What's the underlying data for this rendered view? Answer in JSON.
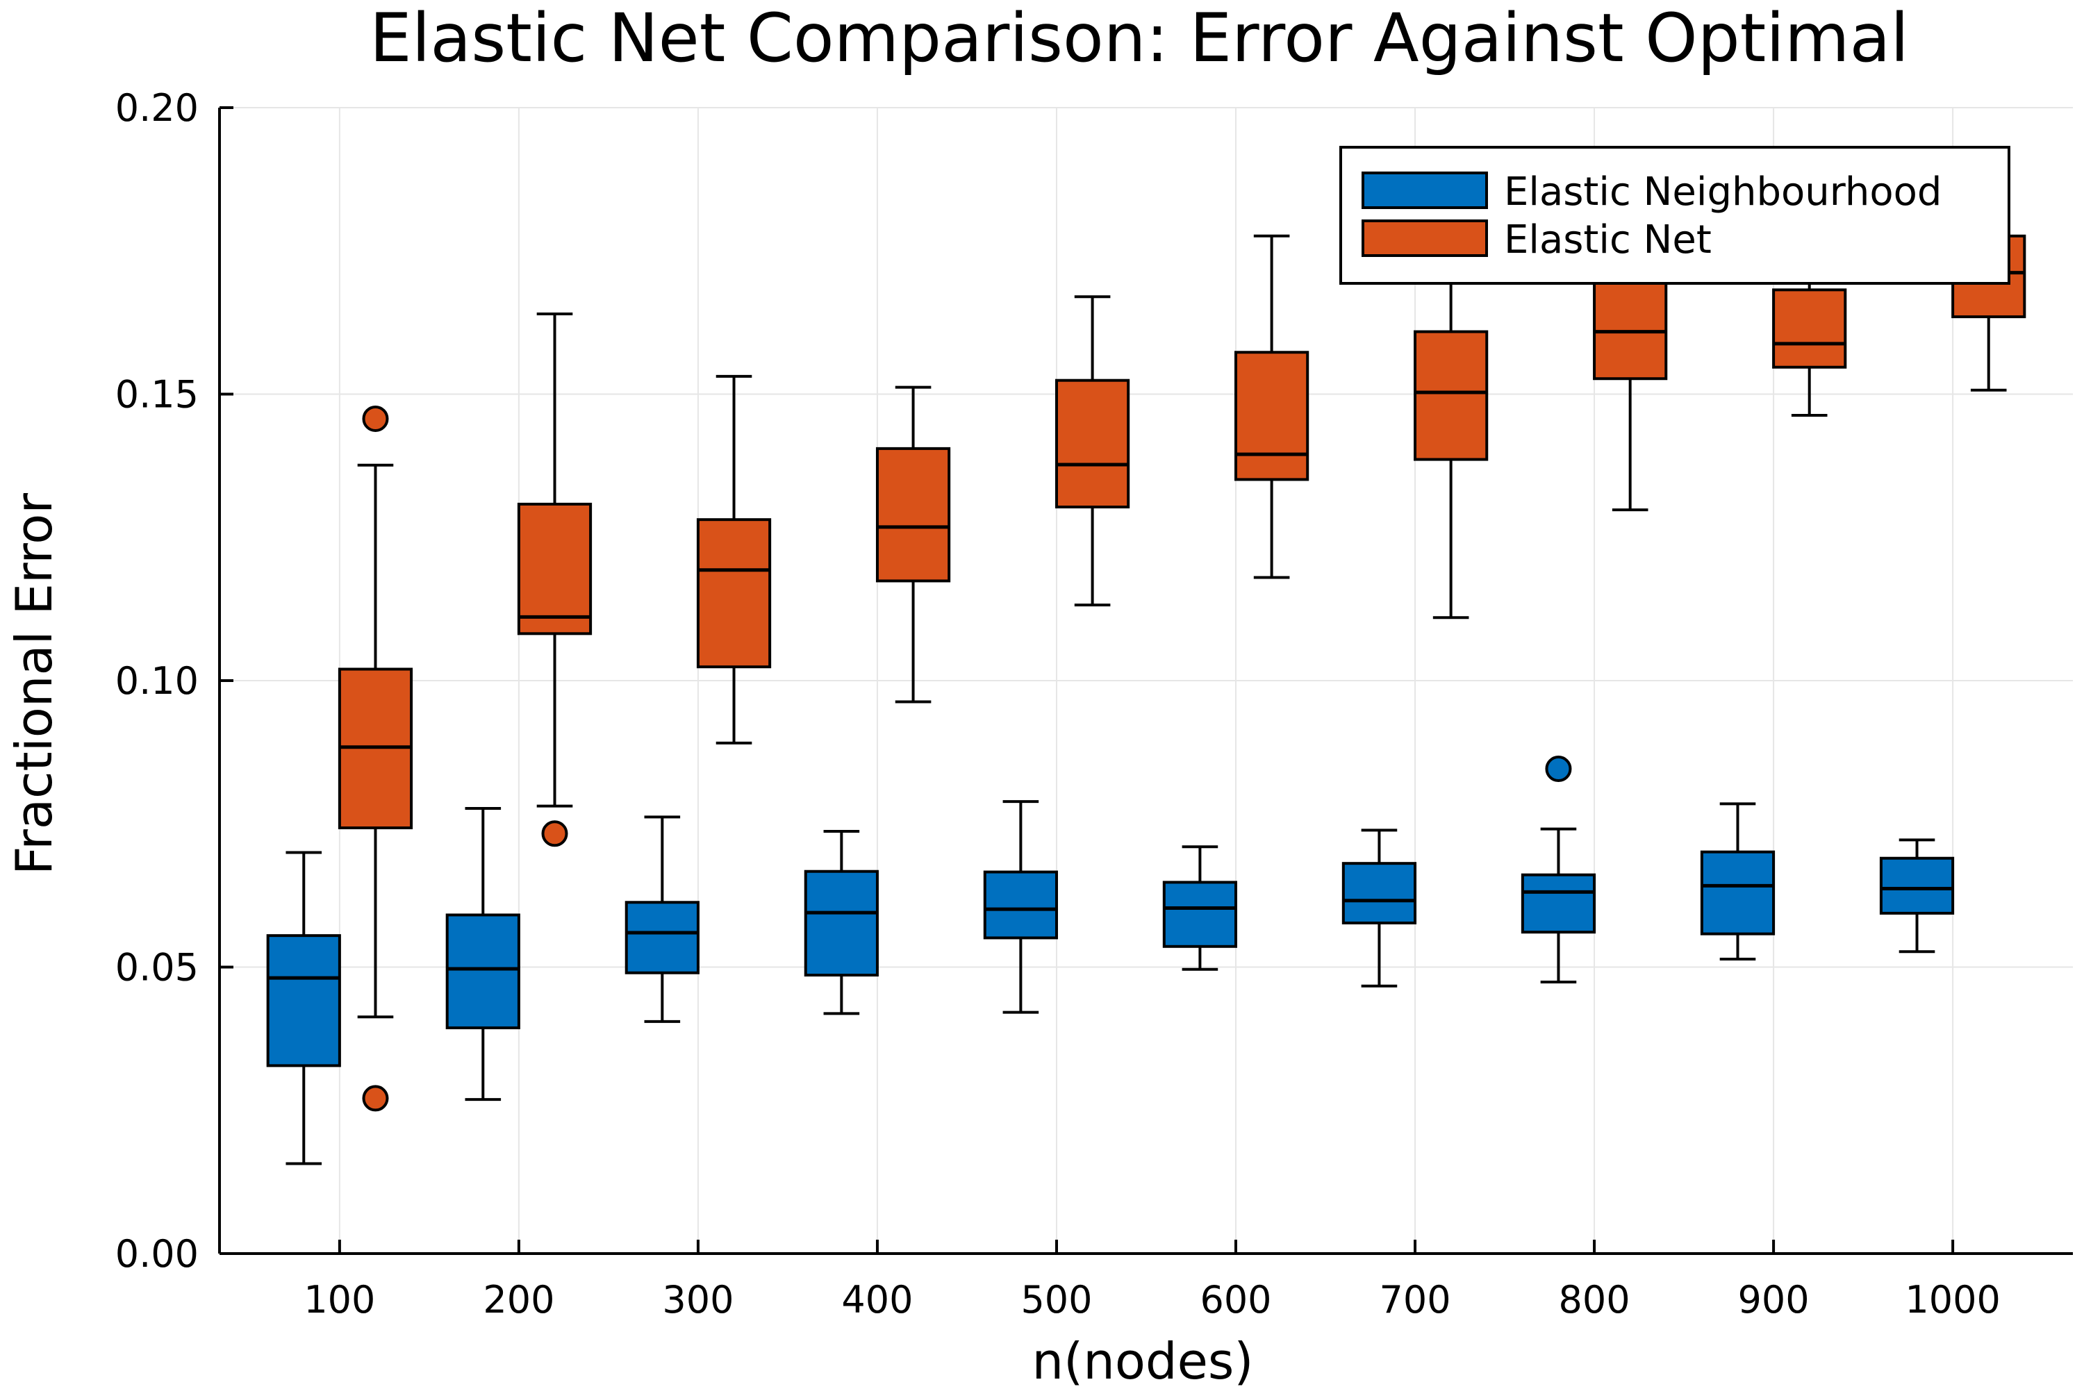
{
  "chart_data": {
    "type": "box",
    "title": "Elastic Net Comparison: Error Against Optimal",
    "xlabel": "n(nodes)",
    "ylabel": "Fractional Error",
    "ylim": [
      0.0,
      0.2
    ],
    "xlim": [
      33,
      1067
    ],
    "x_ticks": [
      {
        "value": 100,
        "label": "100"
      },
      {
        "value": 200,
        "label": "200"
      },
      {
        "value": 300,
        "label": "300"
      },
      {
        "value": 400,
        "label": "400"
      },
      {
        "value": 500,
        "label": "500"
      },
      {
        "value": 600,
        "label": "600"
      },
      {
        "value": 700,
        "label": "700"
      },
      {
        "value": 800,
        "label": "800"
      },
      {
        "value": 900,
        "label": "900"
      },
      {
        "value": 1000,
        "label": "1000"
      }
    ],
    "y_ticks": [
      {
        "value": 0.0,
        "label": "0.00"
      },
      {
        "value": 0.05,
        "label": "0.05"
      },
      {
        "value": 0.1,
        "label": "0.10"
      },
      {
        "value": 0.15,
        "label": "0.15"
      },
      {
        "value": 0.2,
        "label": "0.20"
      }
    ],
    "grid": true,
    "legend_position": "top-right",
    "series": [
      {
        "name": "Elastic Neighbourhood",
        "color": "#0070BF",
        "boxes": [
          {
            "x": 80,
            "whisker_low": 0.0157,
            "q1": 0.0328,
            "median": 0.0481,
            "q3": 0.0555,
            "whisker_high": 0.07,
            "outliers": []
          },
          {
            "x": 180,
            "whisker_low": 0.0269,
            "q1": 0.0394,
            "median": 0.0497,
            "q3": 0.0591,
            "whisker_high": 0.0777,
            "outliers": []
          },
          {
            "x": 280,
            "whisker_low": 0.0405,
            "q1": 0.049,
            "median": 0.056,
            "q3": 0.0613,
            "whisker_high": 0.0762,
            "outliers": []
          },
          {
            "x": 380,
            "whisker_low": 0.0419,
            "q1": 0.0486,
            "median": 0.0595,
            "q3": 0.0667,
            "whisker_high": 0.0737,
            "outliers": []
          },
          {
            "x": 480,
            "whisker_low": 0.0421,
            "q1": 0.0551,
            "median": 0.0601,
            "q3": 0.0666,
            "whisker_high": 0.0789,
            "outliers": []
          },
          {
            "x": 580,
            "whisker_low": 0.0496,
            "q1": 0.0536,
            "median": 0.0603,
            "q3": 0.0648,
            "whisker_high": 0.071,
            "outliers": []
          },
          {
            "x": 680,
            "whisker_low": 0.0467,
            "q1": 0.0577,
            "median": 0.0616,
            "q3": 0.0681,
            "whisker_high": 0.0739,
            "outliers": []
          },
          {
            "x": 780,
            "whisker_low": 0.0474,
            "q1": 0.0561,
            "median": 0.0631,
            "q3": 0.0661,
            "whisker_high": 0.0741,
            "outliers": [
              0.0846
            ]
          },
          {
            "x": 880,
            "whisker_low": 0.0514,
            "q1": 0.0558,
            "median": 0.0642,
            "q3": 0.0701,
            "whisker_high": 0.0785,
            "outliers": []
          },
          {
            "x": 980,
            "whisker_low": 0.0527,
            "q1": 0.0594,
            "median": 0.0637,
            "q3": 0.069,
            "whisker_high": 0.0722,
            "outliers": []
          }
        ]
      },
      {
        "name": "Elastic Net",
        "color": "#D95219",
        "boxes": [
          {
            "x": 120,
            "whisker_low": 0.0413,
            "q1": 0.0743,
            "median": 0.0884,
            "q3": 0.102,
            "whisker_high": 0.1376,
            "outliers": [
              0.1457,
              0.0271
            ]
          },
          {
            "x": 220,
            "whisker_low": 0.0781,
            "q1": 0.1082,
            "median": 0.1111,
            "q3": 0.1308,
            "whisker_high": 0.164,
            "outliers": [
              0.0733
            ]
          },
          {
            "x": 320,
            "whisker_low": 0.0891,
            "q1": 0.1024,
            "median": 0.1193,
            "q3": 0.1281,
            "whisker_high": 0.1531,
            "outliers": []
          },
          {
            "x": 420,
            "whisker_low": 0.0963,
            "q1": 0.1174,
            "median": 0.1268,
            "q3": 0.1405,
            "whisker_high": 0.1512,
            "outliers": []
          },
          {
            "x": 520,
            "whisker_low": 0.1132,
            "q1": 0.1303,
            "median": 0.1377,
            "q3": 0.1524,
            "whisker_high": 0.167,
            "outliers": []
          },
          {
            "x": 620,
            "whisker_low": 0.118,
            "q1": 0.1351,
            "median": 0.1395,
            "q3": 0.1573,
            "whisker_high": 0.1776,
            "outliers": []
          },
          {
            "x": 720,
            "whisker_low": 0.111,
            "q1": 0.1386,
            "median": 0.1503,
            "q3": 0.1609,
            "whisker_high": 0.182,
            "outliers": []
          },
          {
            "x": 820,
            "whisker_low": 0.1298,
            "q1": 0.1527,
            "median": 0.1609,
            "q3": 0.172,
            "whisker_high": 0.18,
            "outliers": []
          },
          {
            "x": 920,
            "whisker_low": 0.1463,
            "q1": 0.1547,
            "median": 0.1588,
            "q3": 0.1682,
            "whisker_high": 0.176,
            "outliers": []
          },
          {
            "x": 1020,
            "whisker_low": 0.1507,
            "q1": 0.1635,
            "median": 0.1712,
            "q3": 0.1776,
            "whisker_high": 0.182,
            "outliers": []
          }
        ]
      }
    ]
  }
}
